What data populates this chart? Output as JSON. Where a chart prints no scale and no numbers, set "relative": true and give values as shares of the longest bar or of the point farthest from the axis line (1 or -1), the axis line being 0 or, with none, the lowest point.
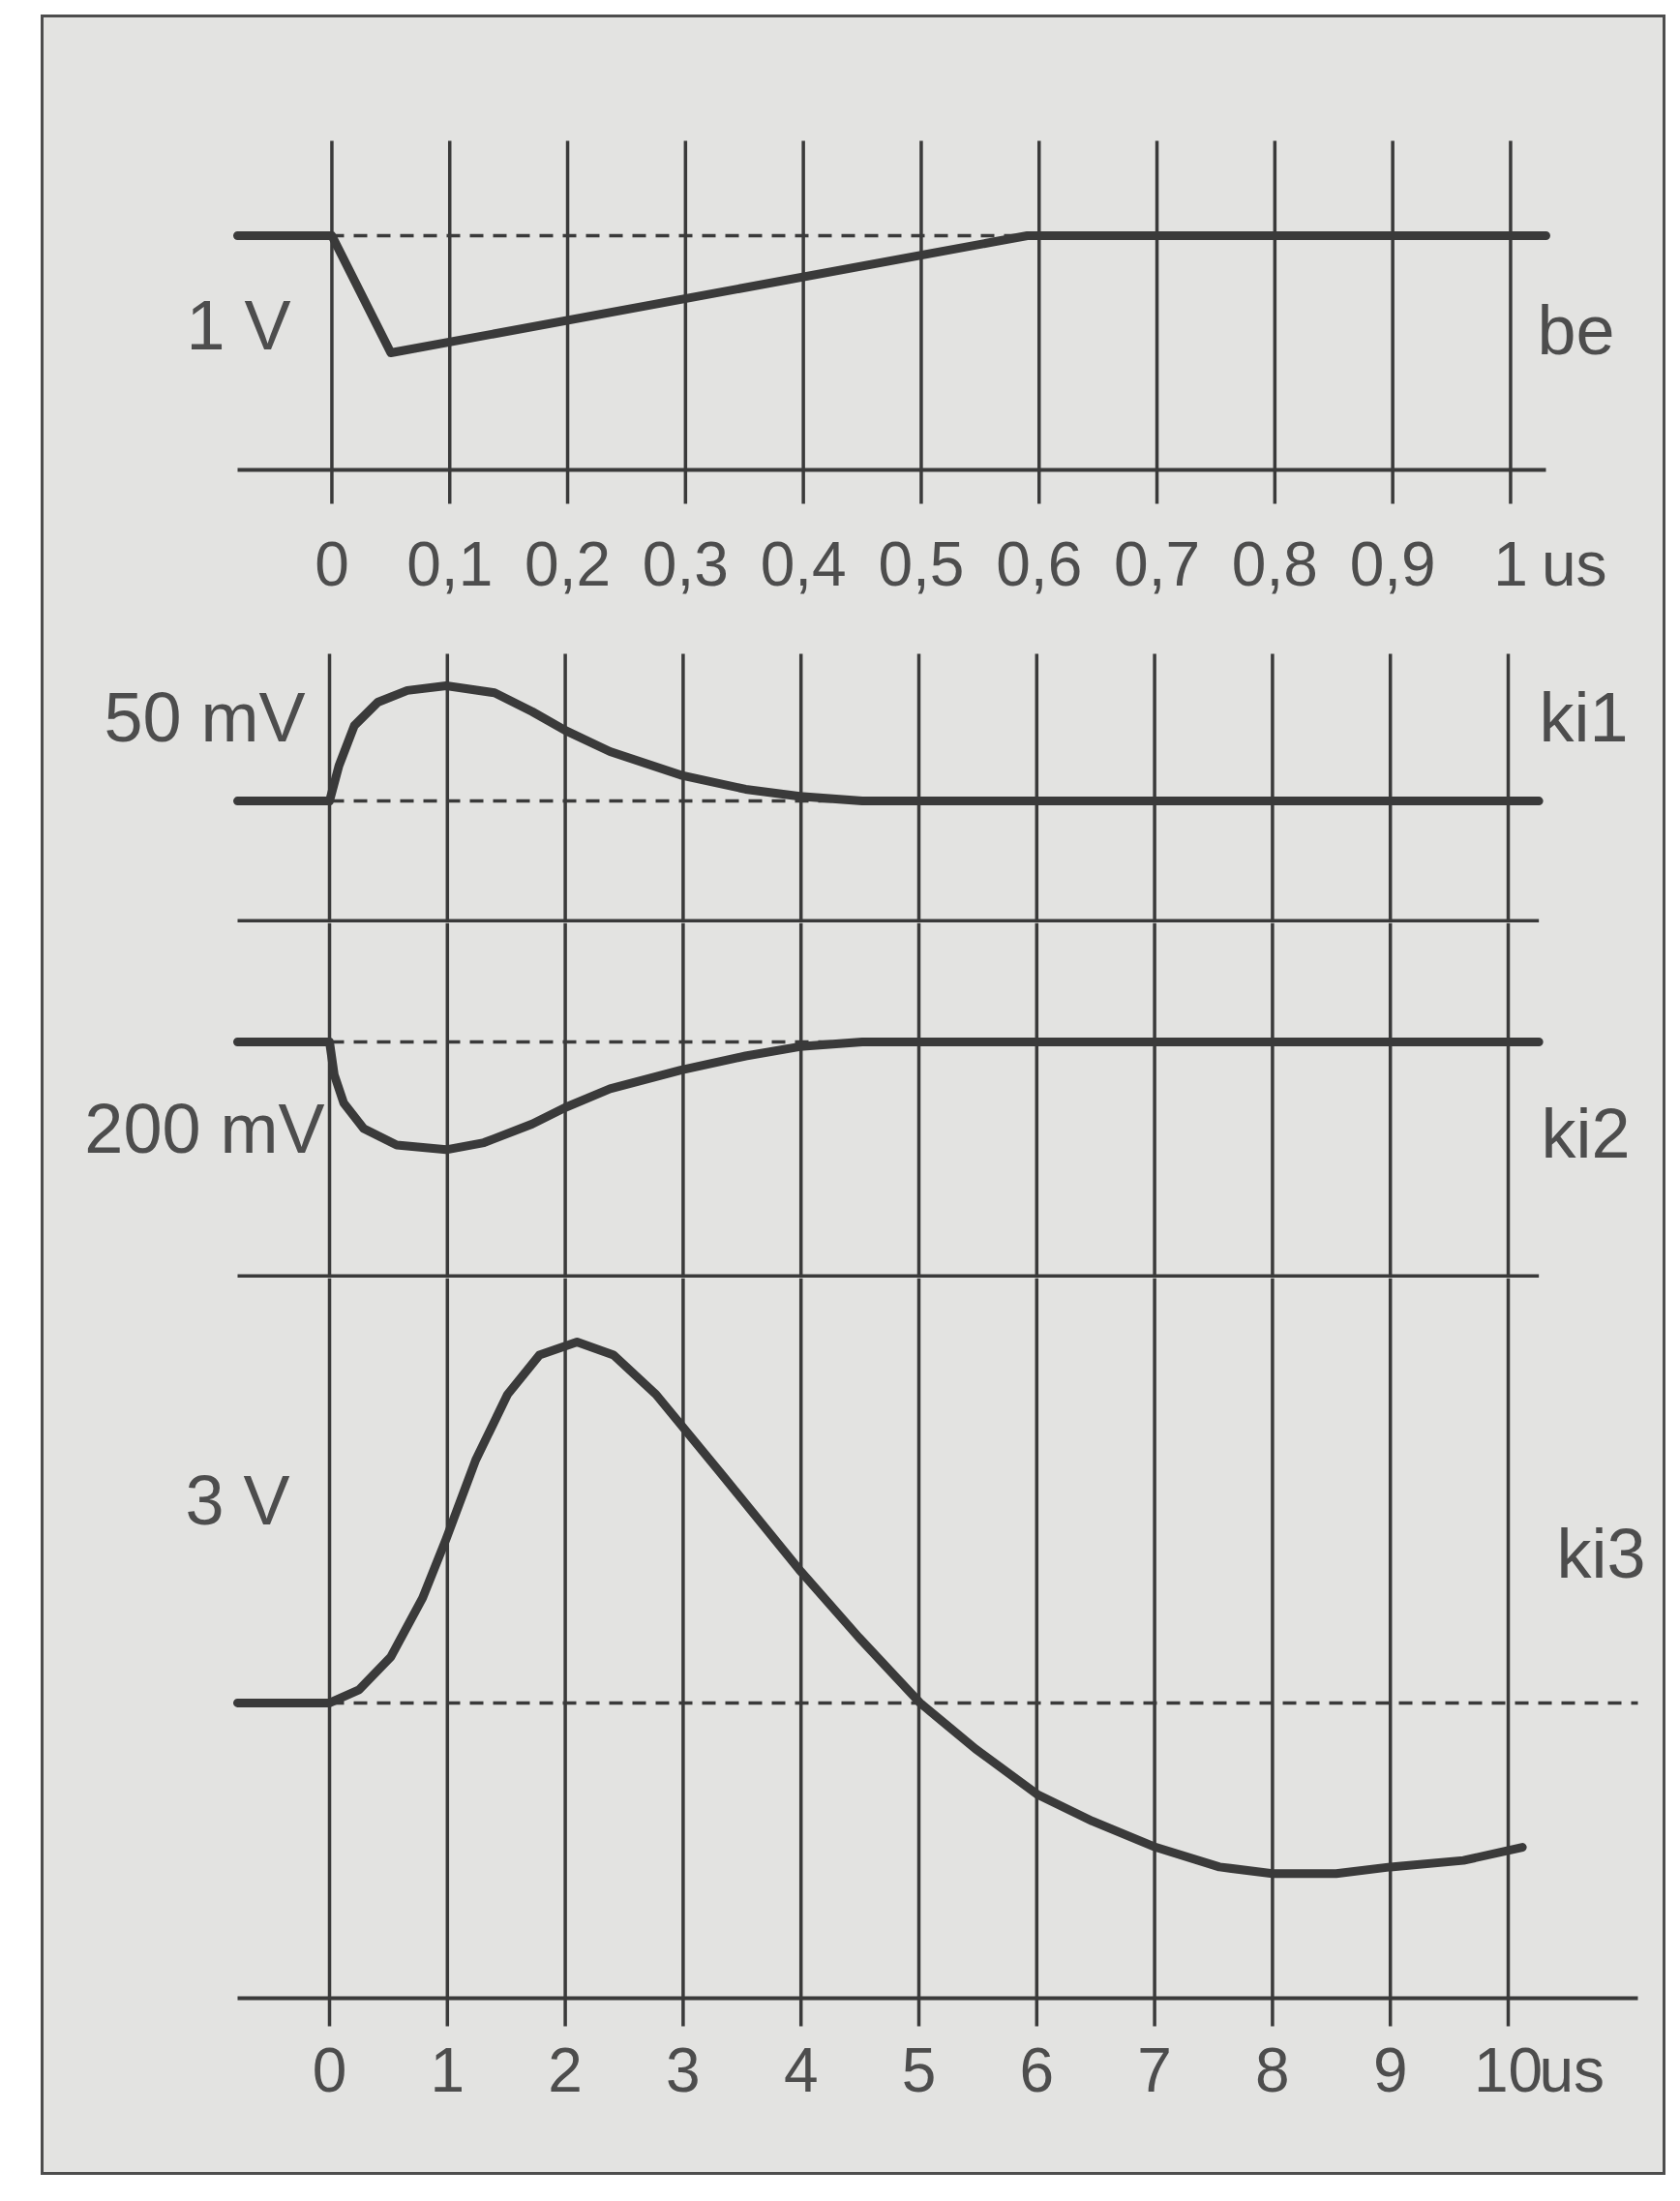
{
  "chart_data": [
    {
      "type": "line",
      "relative": true,
      "xlim": [
        -0.08,
        1.03
      ],
      "xticks": [
        0,
        {
          "value": 0.1,
          "label": "0,1"
        },
        {
          "value": 0.2,
          "label": "0,2"
        },
        {
          "value": 0.3,
          "label": "0,3"
        },
        {
          "value": 0.4,
          "label": "0,4"
        },
        {
          "value": 0.5,
          "label": "0,5"
        },
        {
          "value": 0.6,
          "label": "0,6"
        },
        {
          "value": 0.7,
          "label": "0,7"
        },
        {
          "value": 0.8,
          "label": "0,8"
        },
        {
          "value": 0.9,
          "label": "0,9"
        },
        1
      ],
      "xlabel": "us",
      "grid": "x",
      "tick_labels": "x",
      "annotations": [
        "1 V"
      ],
      "ref_lines": [
        {
          "axis": "y",
          "value": 1,
          "line_style": "dashed",
          "color": "#3a3a3a"
        }
      ],
      "series": [
        {
          "name": "be",
          "color": "#3a3a3a",
          "x": [
            -0.08,
            0,
            0.05,
            0.59,
            1.03
          ],
          "values": [
            1,
            1,
            0.5,
            1,
            1
          ]
        }
      ]
    },
    {
      "type": "line",
      "relative": true,
      "xlim": [
        -0.78,
        10.26
      ],
      "xticks": [
        0,
        1,
        2,
        3,
        4,
        5,
        6,
        7,
        8,
        9,
        10
      ],
      "grid": "x",
      "tick_labels": false,
      "annotations": [
        "50 mV"
      ],
      "ref_lines": [
        {
          "axis": "y",
          "value": 0.51,
          "line_style": "dashed",
          "color": "#3a3a3a"
        }
      ],
      "series": [
        {
          "name": "ki1",
          "color": "#3a3a3a",
          "x": [
            -0.78,
            0,
            0.08,
            0.21,
            0.41,
            0.66,
            0.99,
            1.4,
            1.72,
            2,
            2.38,
            2.98,
            3.53,
            3.99,
            4.52,
            10.26
          ],
          "values": [
            0.51,
            0.51,
            0.66,
            0.83,
            0.93,
            0.98,
            1,
            0.97,
            0.89,
            0.81,
            0.72,
            0.62,
            0.56,
            0.53,
            0.51,
            0.51
          ]
        }
      ]
    },
    {
      "type": "line",
      "relative": true,
      "xlim": [
        -0.78,
        10.26
      ],
      "xticks": [
        0,
        1,
        2,
        3,
        4,
        5,
        6,
        7,
        8,
        9,
        10
      ],
      "grid": "x",
      "tick_labels": false,
      "annotations": [
        "200 mV"
      ],
      "ref_lines": [
        {
          "axis": "y",
          "value": 1,
          "line_style": "dashed",
          "color": "#3a3a3a"
        }
      ],
      "series": [
        {
          "name": "ki2",
          "color": "#3a3a3a",
          "x": [
            -0.78,
            0,
            0.04,
            0.12,
            0.29,
            0.57,
            0.99,
            1.31,
            1.72,
            2,
            2.38,
            2.98,
            3.53,
            3.99,
            4.52,
            10.26
          ],
          "values": [
            1,
            1,
            0.86,
            0.74,
            0.63,
            0.56,
            0.54,
            0.57,
            0.65,
            0.72,
            0.8,
            0.88,
            0.94,
            0.98,
            1,
            1
          ]
        }
      ]
    },
    {
      "type": "line",
      "relative": true,
      "xlim": [
        -0.78,
        11.1
      ],
      "xticks": [
        0,
        1,
        2,
        3,
        4,
        5,
        6,
        7,
        8,
        9,
        10
      ],
      "xlabel": "us",
      "grid": "x",
      "tick_labels": "x",
      "annotations": [
        "3 V"
      ],
      "ref_lines": [
        {
          "axis": "y",
          "value": 0.45,
          "line_style": "dashed",
          "color": "#3a3a3a"
        }
      ],
      "series": [
        {
          "name": "ki3",
          "color": "#3a3a3a",
          "x": [
            -0.78,
            0,
            0.25,
            0.52,
            0.79,
            0.99,
            1.24,
            1.51,
            1.78,
            2.1,
            2.41,
            2.77,
            3.32,
            4,
            4.49,
            5.01,
            5.48,
            6.01,
            6.47,
            7.01,
            7.55,
            8,
            8.54,
            9,
            9.62,
            10.12
          ],
          "values": [
            0.45,
            0.45,
            0.47,
            0.52,
            0.61,
            0.7,
            0.82,
            0.92,
            0.98,
            1,
            0.98,
            0.92,
            0.8,
            0.65,
            0.55,
            0.45,
            0.38,
            0.31,
            0.27,
            0.23,
            0.2,
            0.19,
            0.19,
            0.2,
            0.21,
            0.23
          ]
        }
      ]
    }
  ]
}
